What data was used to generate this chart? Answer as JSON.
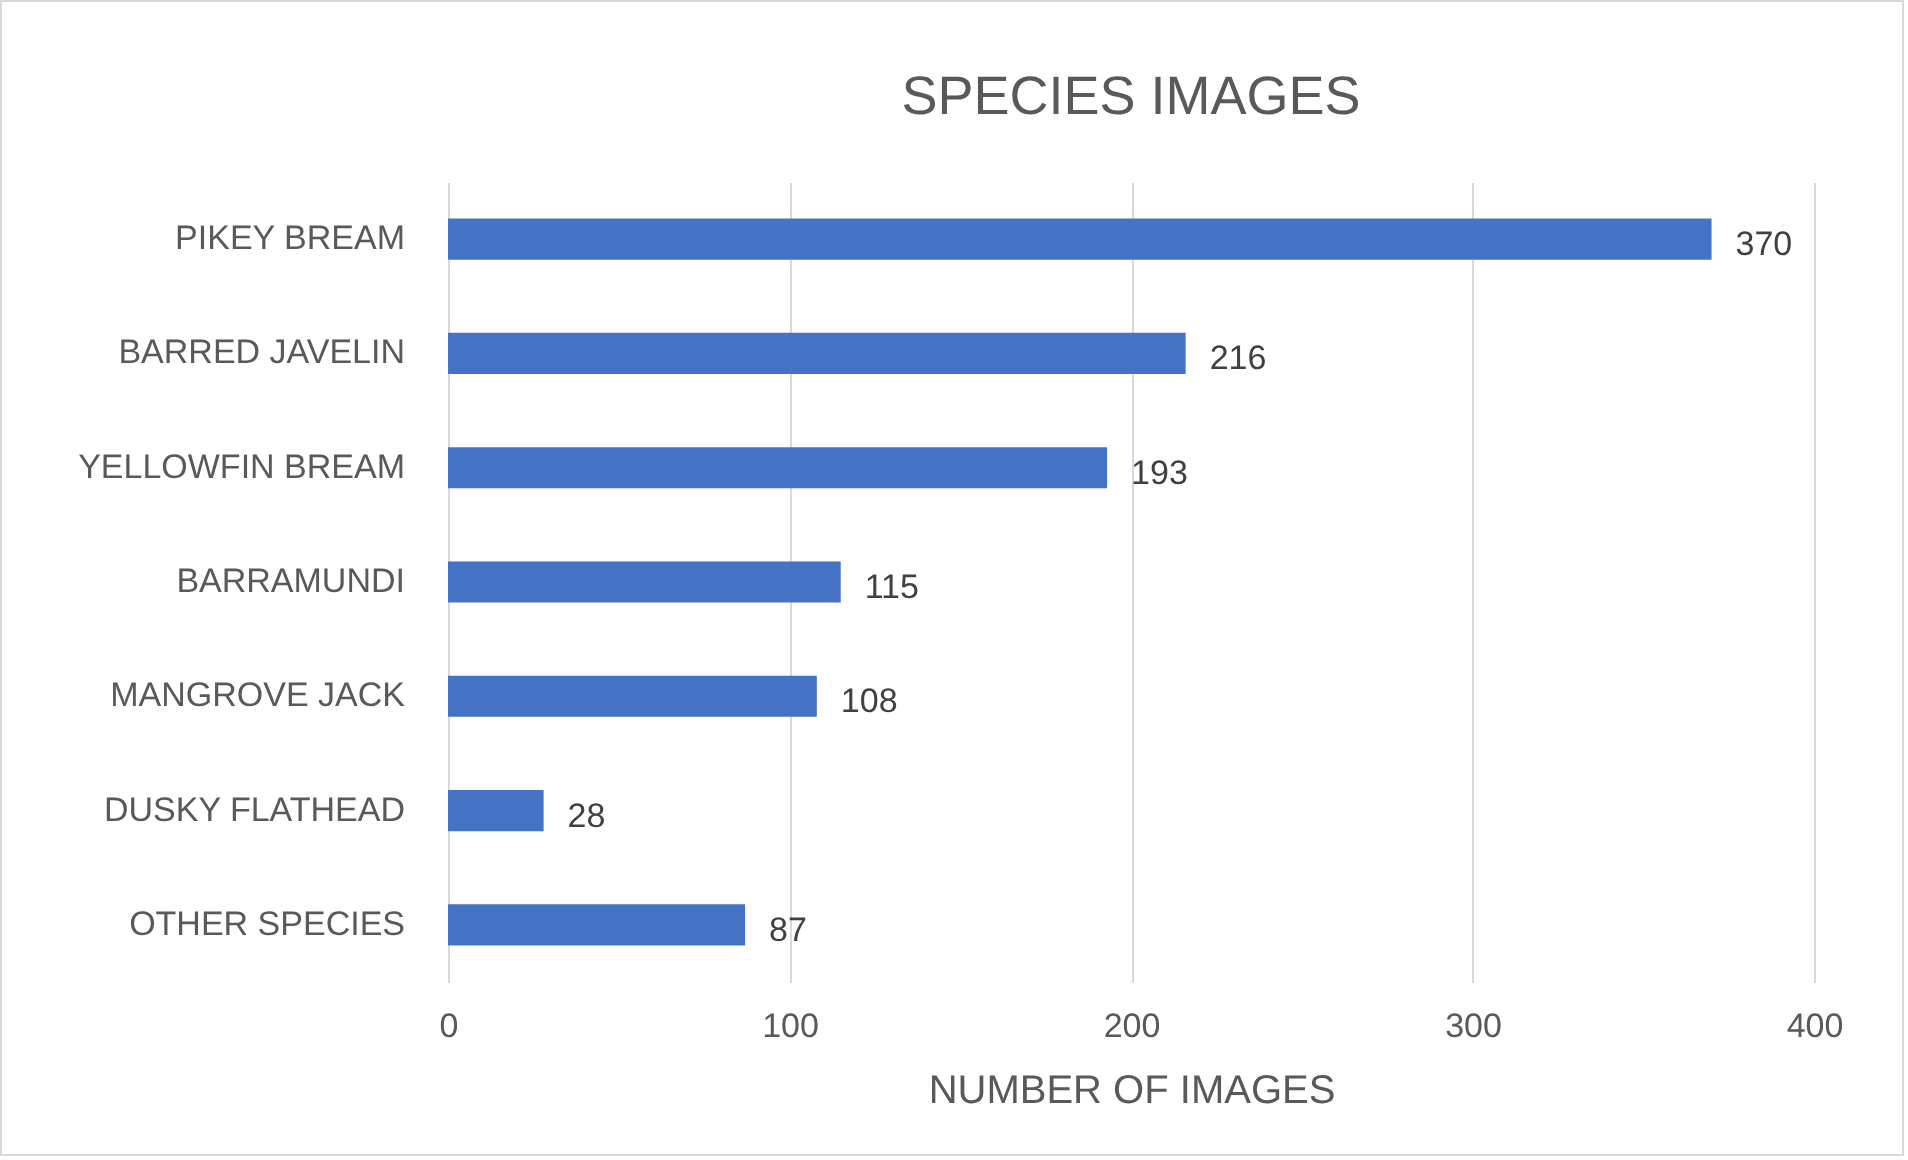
{
  "chart_data": {
    "type": "bar",
    "orientation": "horizontal",
    "title": "SPECIES IMAGES",
    "xlabel": "NUMBER OF IMAGES",
    "categories": [
      "PIKEY BREAM",
      "BARRED JAVELIN",
      "YELLOWFIN BREAM",
      "BARRAMUNDI",
      "MANGROVE JACK",
      "DUSKY FLATHEAD",
      "OTHER SPECIES"
    ],
    "values": [
      370,
      216,
      193,
      115,
      108,
      28,
      87
    ],
    "color": "#4472c4",
    "xlim": [
      0,
      400
    ],
    "xticks": [
      0,
      100,
      200,
      300,
      400
    ],
    "grid": "x",
    "data_labels": true
  }
}
